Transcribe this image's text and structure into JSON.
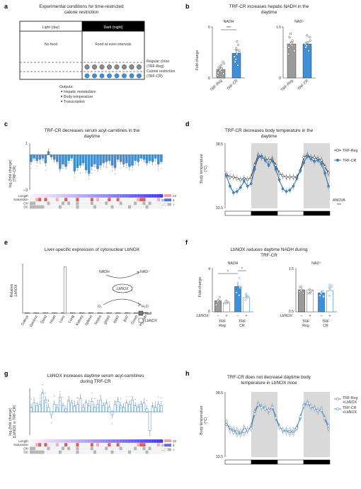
{
  "panels": {
    "a": {
      "label": "a",
      "title_line1": "Experimental conditions for time-restricted",
      "title_line2": "calorie restriction",
      "light": "Light (day)",
      "dark": "Dark (night)",
      "no_food": "No food",
      "food": "Food at even intervals",
      "reg_line1": "Regular chow",
      "reg_line2": "(TRF-Reg)",
      "cr_line1": "Calorie restriction",
      "cr_line2": "(TRF-CR)",
      "outputs_title": "Outputs:",
      "outputs": [
        "Hepatic metabolism",
        "Body temperature",
        "Transcription"
      ]
    },
    "b": {
      "label": "b",
      "title_line1": "TRF-CR increases hepatic NADH in the",
      "title_line2": "daytime",
      "ylabel": "Fold change"
    },
    "c": {
      "label": "c",
      "title_line1": "TRF-CR decreases serum acyl-carnitines in the",
      "title_line2": "daytime",
      "ylabel_line1": "log₂(fold change)",
      "ylabel_line2": "(TRF-CR)",
      "rows": [
        "Length",
        "Saturation",
        "OH",
        "DC"
      ],
      "scale_length": [
        "2",
        "22"
      ],
      "scale_sat": [
        "0",
        "4"
      ],
      "scale_minus": "–",
      "scale_plus": "+"
    },
    "d": {
      "label": "d",
      "title_line1": "TRF-CR decreases body temperature in the",
      "title_line2": "daytime",
      "ylabel_line1": "Body temperature",
      "ylabel_line2": "(°C)",
      "anova": "ANOVA",
      "anova_sig": "***"
    },
    "e": {
      "label": "e",
      "title": "Liver-specific expression of cytonuclear LbNOX",
      "ylabel_line1": "Relative",
      "ylabel_line2": "LbNOX",
      "nadh": "NADH",
      "nad": "NAD⁺",
      "enzyme": "LbNOX",
      "o2": "O₂",
      "h2o": "H₂O"
    },
    "f": {
      "label": "f",
      "title_line1": "LbNOX reduces daytime NADH during",
      "title_line2": "TRF-CR",
      "ylabel": "Fold change",
      "lbnox": "LbNOX:",
      "minus": "–",
      "plus": "+",
      "trf": "TRF",
      "reg": "Reg",
      "cr": "CR"
    },
    "g": {
      "label": "g",
      "title_line1": "LbNOX increases daytime serum acyl-carnitines",
      "title_line2": "during TRF-CR",
      "ylabel_line1": "log₂(fold change)",
      "ylabel_line2": "(LbNOX in TRF-CR)",
      "rows": [
        "Length",
        "Saturation",
        "OH",
        "DC"
      ],
      "scale_length": [
        "2",
        "22"
      ],
      "scale_sat": [
        "0",
        "4"
      ],
      "scale_minus": "–",
      "scale_plus": "+"
    },
    "h": {
      "label": "h",
      "title_line1": "TRF-CR does not decrease daytime body",
      "title_line2": "temperature in LbNOX mice",
      "ylabel_line1": "Body temperature",
      "ylabel_line2": "(°C)",
      "legend1_line1": "TRF-Reg",
      "legend1_line2": "+LbNOX",
      "legend2_line1": "TRF-CR",
      "legend2_line2": "+LbNOX"
    }
  },
  "colors": {
    "reg": "#9a9a9a",
    "cr": "#3d8fd6",
    "dark": "#000000",
    "night_shade": "#d9d9d9"
  },
  "chart_data": [
    {
      "id": "b-nadh",
      "type": "bar",
      "title": "NADH",
      "categories": [
        "TRF-Reg",
        "TRF-CR"
      ],
      "values": [
        1.0,
        2.9
      ],
      "errors": [
        0.2,
        0.4
      ],
      "ylim": [
        0,
        6
      ],
      "yticks": [
        "0",
        "6"
      ],
      "significance": "***",
      "points": [
        [
          0.3,
          0.5,
          0.6,
          0.8,
          0.9,
          1.0,
          1.1,
          1.2,
          1.3,
          1.5,
          1.7,
          1.9
        ],
        [
          1.5,
          1.9,
          2.2,
          2.5,
          2.8,
          3.0,
          3.2,
          3.5,
          3.9,
          4.3
        ]
      ]
    },
    {
      "id": "b-nad",
      "type": "bar",
      "title": "NAD⁺",
      "categories": [
        "TRF-Reg",
        "TRF-CR"
      ],
      "values": [
        1.0,
        1.0
      ],
      "errors": [
        0.05,
        0.05
      ],
      "ylim": [
        0,
        1.5
      ],
      "yticks": [
        "0",
        "1.5"
      ],
      "points": [
        [
          0.7,
          0.8,
          0.9,
          0.95,
          1.0,
          1.05,
          1.1,
          1.2,
          1.3
        ],
        [
          0.8,
          0.9,
          0.95,
          1.0,
          1.05,
          1.1,
          1.2,
          1.25
        ]
      ]
    },
    {
      "id": "c",
      "type": "bar",
      "title": "TRF-CR decreases serum acyl-carnitines in the daytime",
      "ylim": [
        -3,
        1
      ],
      "yticks": [
        "–3",
        "1"
      ],
      "values": [
        -0.6,
        -0.3,
        -0.5,
        -0.4,
        -0.3,
        -0.7,
        0.3,
        -0.2,
        -0.4,
        -0.6,
        -1.2,
        -0.8,
        -1.0,
        -0.5,
        -0.3,
        -1.4,
        -1.1,
        -0.9,
        -0.7,
        -1.3,
        -1.6,
        -1.0,
        -0.8,
        -1.2,
        -0.9,
        -0.7,
        -0.6,
        -0.5,
        -0.9,
        -1.1,
        -0.4,
        -0.6,
        -0.8,
        -0.7,
        -1.0,
        -0.9,
        -0.5,
        -0.6,
        -0.3,
        -0.4,
        -0.7,
        -0.5,
        -0.6,
        -0.3,
        -0.8,
        -0.6
      ]
    },
    {
      "id": "d",
      "type": "line",
      "title": "TRF-CR decreases body temperature in the daytime",
      "ylim": [
        33.5,
        38.5
      ],
      "yticks": [
        "33.5",
        "38.5"
      ],
      "series": [
        {
          "name": "TRF-Reg",
          "values": [
            36.1,
            35.9,
            35.9,
            35.8,
            35.7,
            35.8,
            35.7,
            35.9,
            36.8,
            37.6,
            37.4,
            37.3,
            37.2,
            37.3,
            36.8,
            36.2,
            36.0,
            35.9,
            35.9,
            35.9,
            35.9,
            36.4,
            37.4,
            37.6,
            37.4,
            37.4,
            37.3,
            37.2,
            36.7,
            36.2
          ]
        },
        {
          "name": "TRF-CR",
          "values": [
            36.0,
            35.2,
            34.7,
            34.8,
            35.1,
            35.6,
            35.2,
            35.4,
            36.5,
            37.4,
            37.5,
            37.2,
            36.8,
            37.2,
            36.5,
            35.7,
            35.0,
            34.8,
            34.9,
            35.2,
            35.8,
            36.4,
            37.0,
            37.5,
            37.3,
            37.1,
            37.2,
            36.9,
            36.2,
            35.2
          ]
        }
      ],
      "legend_position": "right"
    },
    {
      "id": "e",
      "type": "bar",
      "title": "Liver-specific expression of cytonuclear LbNOX",
      "categories": [
        "Soleus",
        "Gastroc",
        "Quad",
        "Heart",
        "Liver",
        "Lung",
        "Kidney",
        "Spleen",
        "Testes",
        "gWAT",
        "iWAT",
        "BAT",
        "Cereb",
        "Hypoth"
      ],
      "series": [
        {
          "name": "Null",
          "values": [
            0,
            0,
            0,
            0,
            0,
            0,
            0,
            0,
            0,
            0,
            0,
            0,
            0,
            0
          ]
        },
        {
          "name": "LbNOX",
          "values": [
            0,
            0,
            0,
            0,
            1,
            0,
            0,
            0,
            0,
            0,
            0,
            0,
            0,
            0
          ]
        }
      ]
    },
    {
      "id": "f-nadh",
      "type": "bar",
      "title": "NADH",
      "categories": [
        "TRF Reg –",
        "TRF Reg +",
        "TRF CR –",
        "TRF CR +"
      ],
      "values": [
        1.0,
        0.8,
        2.3,
        1.3
      ],
      "errors": [
        0.2,
        0.1,
        0.4,
        0.2
      ],
      "ylim": [
        0,
        4
      ],
      "yticks": [
        "0",
        "4"
      ],
      "significance": [
        "*",
        "*"
      ]
    },
    {
      "id": "f-nad",
      "type": "bar",
      "title": "NAD⁺",
      "categories": [
        "TRF Reg –",
        "TRF Reg +",
        "TRF CR –",
        "TRF CR +"
      ],
      "values": [
        1.0,
        1.0,
        0.93,
        0.98
      ],
      "errors": [
        0.05,
        0.04,
        0.05,
        0.08
      ],
      "ylim": [
        0.5,
        1.5
      ],
      "yticks": [
        "0.5",
        "1.5"
      ]
    },
    {
      "id": "g",
      "type": "bar",
      "title": "LbNOX increases daytime serum acyl-carnitines during TRF-CR",
      "values": [
        0.3,
        0.6,
        0.4,
        0.5,
        1.3,
        0.8,
        0.3,
        -0.2,
        0.5,
        0.3,
        1.0,
        0.4,
        0.2,
        0.8,
        0.6,
        0.4,
        0.5,
        0.9,
        0.3,
        0.6,
        0.4,
        0.7,
        0.3,
        0.5,
        0.8,
        0.4,
        0.6,
        0.3,
        -0.2,
        0.5,
        0.7,
        0.4,
        0.3,
        0.6,
        0.5,
        0.8,
        0.4,
        0.3,
        0.5,
        0.6,
        0.2,
        -1.3,
        0.4,
        0.3,
        0.5,
        0.4
      ]
    },
    {
      "id": "h",
      "type": "line",
      "title": "TRF-CR does not decrease daytime body temperature in LbNOX mice",
      "ylim": [
        33.5,
        38.5
      ],
      "yticks": [
        "33.5",
        "38.5"
      ],
      "series": [
        {
          "name": "TRF-Reg +LbNOX",
          "values": [
            36.0,
            35.8,
            35.4,
            35.6,
            35.2,
            35.8,
            35.5,
            35.9,
            37.0,
            37.6,
            37.4,
            37.3,
            37.0,
            37.4,
            36.6,
            35.9,
            35.5,
            35.6,
            35.3,
            35.6,
            35.8,
            36.5,
            37.5,
            37.7,
            37.3,
            37.3,
            37.0,
            37.2,
            36.4,
            35.7
          ]
        },
        {
          "name": "TRF-CR +LbNOX",
          "values": [
            36.2,
            35.5,
            35.7,
            35.2,
            35.5,
            35.3,
            35.6,
            35.7,
            36.8,
            37.5,
            37.3,
            37.2,
            37.1,
            37.3,
            36.5,
            35.8,
            35.6,
            35.4,
            35.6,
            35.3,
            35.7,
            36.6,
            37.4,
            37.6,
            37.4,
            37.2,
            37.1,
            37.1,
            36.5,
            35.9
          ]
        }
      ],
      "legend_position": "right"
    }
  ]
}
